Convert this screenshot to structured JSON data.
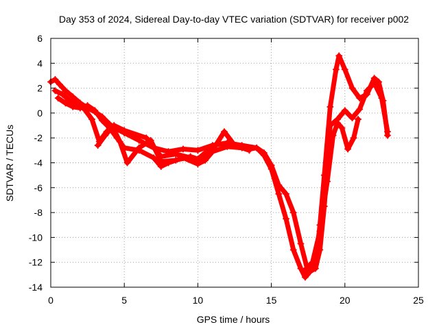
{
  "chart_data": {
    "type": "scatter",
    "title": "Day 353 of 2024, Sidereal Day-to-day VTEC variation (SDTVAR) for receiver p002",
    "xlabel": "GPS time / hours",
    "ylabel": "SDTVAR / TECUs",
    "xlim": [
      0,
      25
    ],
    "ylim": [
      -14,
      6
    ],
    "xticks": [
      0,
      5,
      10,
      15,
      20,
      25
    ],
    "yticks": [
      -14,
      -12,
      -10,
      -8,
      -6,
      -4,
      -2,
      0,
      2,
      4,
      6
    ],
    "grid": true,
    "marker": "+",
    "series": [
      {
        "name": "trace-a",
        "color": "#ff0000",
        "x": [
          0.0,
          0.3,
          0.6,
          1.0,
          1.5,
          2.0,
          2.5,
          3.0,
          3.5,
          4.0,
          4.5,
          5.0,
          6.0,
          7.0,
          8.0,
          9.0,
          10.0,
          11.0,
          12.0,
          13.0,
          14.0,
          14.5,
          15.0,
          15.5,
          16.0,
          16.5,
          17.0,
          17.3,
          17.6,
          18.0,
          18.3,
          18.6,
          19.0,
          19.4,
          19.6,
          20.0,
          20.5,
          21.0,
          21.5,
          22.0,
          22.3,
          22.6,
          22.9
        ],
        "y": [
          2.5,
          2.7,
          2.3,
          1.8,
          1.3,
          0.8,
          0.4,
          0.1,
          -0.3,
          -0.9,
          -1.3,
          -1.6,
          -2.2,
          -2.8,
          -3.1,
          -2.9,
          -3.0,
          -2.6,
          -2.4,
          -2.6,
          -2.8,
          -3.4,
          -4.5,
          -6.5,
          -8.5,
          -11.0,
          -12.5,
          -13.2,
          -12.8,
          -12.2,
          -9.0,
          -5.0,
          0.5,
          3.5,
          4.6,
          3.5,
          2.0,
          1.2,
          1.5,
          2.8,
          2.5,
          1.0,
          -1.8
        ]
      },
      {
        "name": "trace-b",
        "color": "#ff0000",
        "x": [
          0.5,
          1.0,
          1.5,
          2.0,
          2.5,
          3.0,
          3.5,
          4.0,
          4.5,
          5.0,
          6.0,
          7.0,
          7.5,
          8.0,
          9.0,
          10.0,
          10.5,
          11.0,
          12.0,
          13.0,
          13.5,
          14.0,
          14.5,
          15.0,
          15.5,
          16.0,
          16.5,
          17.0,
          17.5,
          18.0,
          18.3,
          18.6,
          19.0,
          19.5,
          20.0,
          20.5,
          21.0,
          21.5,
          22.0,
          22.5,
          22.9
        ],
        "y": [
          1.2,
          0.8,
          0.5,
          0.4,
          0.6,
          0.2,
          -0.6,
          -1.2,
          -2.0,
          -2.8,
          -3.0,
          -3.6,
          -4.3,
          -4.0,
          -3.6,
          -4.1,
          -3.8,
          -3.1,
          -2.7,
          -2.8,
          -2.9,
          -2.8,
          -3.2,
          -4.2,
          -5.8,
          -6.5,
          -8.0,
          -10.5,
          -12.8,
          -12.5,
          -11.0,
          -7.5,
          -1.0,
          -0.5,
          0.2,
          -0.4,
          0.3,
          1.8,
          2.4,
          1.2,
          -1.5
        ]
      },
      {
        "name": "trace-c",
        "color": "#ff0000",
        "x": [
          0.3,
          0.8,
          1.3,
          1.8,
          2.3,
          2.8,
          3.3,
          3.8,
          4.3,
          5.0,
          6.5,
          7.5,
          8.5,
          9.5,
          10.2,
          11.0,
          11.8,
          12.5,
          13.5
        ],
        "y": [
          1.8,
          1.5,
          1.0,
          0.7,
          0.3,
          -0.5,
          -2.3,
          -1.5,
          -1.0,
          -1.4,
          -2.0,
          -3.5,
          -3.3,
          -3.6,
          -3.9,
          -3.0,
          -1.5,
          -2.6,
          -3.0
        ]
      },
      {
        "name": "trace-d",
        "color": "#ff0000",
        "x": [
          3.2,
          3.7,
          4.2,
          4.7,
          5.2,
          6.0,
          6.8,
          7.5,
          8.5,
          9.5,
          10.0,
          10.5,
          11.0
        ],
        "y": [
          -2.6,
          -1.8,
          -1.1,
          -2.3,
          -4.0,
          -2.8,
          -2.2,
          -3.9,
          -3.8,
          -3.5,
          -3.7,
          -3.2,
          -2.9
        ]
      },
      {
        "name": "trace-e",
        "color": "#ff0000",
        "x": [
          17.3,
          17.8,
          18.3,
          18.8,
          19.2,
          19.5,
          19.8,
          20.2,
          20.6,
          20.9
        ],
        "y": [
          -12.6,
          -12.0,
          -9.5,
          -5.5,
          -1.8,
          -0.8,
          -1.2,
          -2.9,
          -2.0,
          -0.5
        ]
      }
    ]
  }
}
